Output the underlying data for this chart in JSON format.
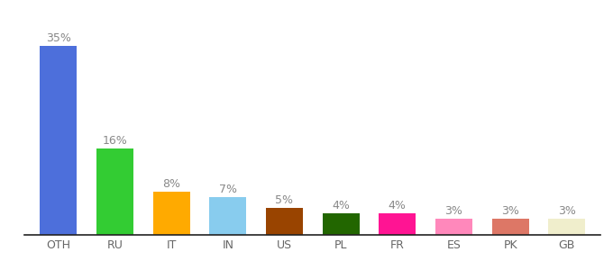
{
  "categories": [
    "OTH",
    "RU",
    "IT",
    "IN",
    "US",
    "PL",
    "FR",
    "ES",
    "PK",
    "GB"
  ],
  "values": [
    35,
    16,
    8,
    7,
    5,
    4,
    4,
    3,
    3,
    3
  ],
  "labels": [
    "35%",
    "16%",
    "8%",
    "7%",
    "5%",
    "4%",
    "4%",
    "3%",
    "3%",
    "3%"
  ],
  "colors": [
    "#4d6fdb",
    "#33cc33",
    "#ffaa00",
    "#88ccee",
    "#994400",
    "#226600",
    "#ff1493",
    "#ff88bb",
    "#dd7766",
    "#f0eecc"
  ],
  "background_color": "#ffffff",
  "ylim": [
    0,
    40
  ],
  "label_fontsize": 9,
  "tick_fontsize": 9,
  "bar_width": 0.65
}
